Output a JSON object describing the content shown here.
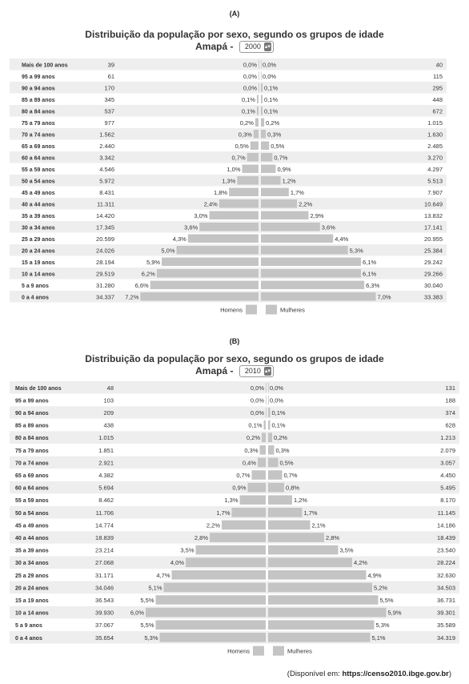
{
  "panels": [
    {
      "label": "(A)",
      "title": "Distribuição da população por sexo, segundo os grupos de idade",
      "subtitle": "Amapá -",
      "year": "2000",
      "legend": [
        "Homens",
        "Mulheres"
      ]
    },
    {
      "label": "(B)",
      "title": "Distribuição da população por sexo, segundo os grupos de idade",
      "subtitle": "Amapá -",
      "year": "2010",
      "legend": [
        "Homens",
        "Mulheres"
      ]
    }
  ],
  "source_prefix": "(Disponível em: ",
  "source_url": "https://censo2010.ibge.gov.br",
  "source_suffix": ")",
  "colors": {
    "bar": "#c4c4c4",
    "row_alt": "#eeeeee",
    "row": "#ffffff"
  },
  "chart_data": [
    {
      "type": "bar",
      "orientation": "horizontal-population-pyramid",
      "categories": [
        "Mais de 100 anos",
        "95 a 99 anos",
        "90 a 94 anos",
        "85 a 89 anos",
        "80 a 84 anos",
        "75 a 79 anos",
        "70 a 74 anos",
        "65 a 69 anos",
        "60 a 64 anos",
        "55 a 59 anos",
        "50 a 54 anos",
        "45 a 49 anos",
        "40 a 44 anos",
        "35 a 39 anos",
        "30 a 34 anos",
        "25 a 29 anos",
        "20 a 24 anos",
        "15 a 19 anos",
        "10 a 14 anos",
        "5 a 9 anos",
        "0 a 4 anos"
      ],
      "series": [
        {
          "name": "Homens",
          "counts": [
            "39",
            "61",
            "170",
            "345",
            "537",
            "977",
            "1.562",
            "2.440",
            "3.342",
            "4.546",
            "5.972",
            "8.431",
            "11.311",
            "14.420",
            "17.345",
            "20.599",
            "24.026",
            "28.194",
            "29.519",
            "31.280",
            "34.337"
          ],
          "percent_labels": [
            "0,0%",
            "0,0%",
            "0,0%",
            "0,1%",
            "0,1%",
            "0,2%",
            "0,3%",
            "0,5%",
            "0,7%",
            "1,0%",
            "1,3%",
            "1,8%",
            "2,4%",
            "3,0%",
            "3,6%",
            "4,3%",
            "5,0%",
            "5,9%",
            "6,2%",
            "6,6%",
            "7,2%"
          ],
          "values": [
            0.0,
            0.0,
            0.0,
            0.1,
            0.1,
            0.2,
            0.3,
            0.5,
            0.7,
            1.0,
            1.3,
            1.8,
            2.4,
            3.0,
            3.6,
            4.3,
            5.0,
            5.9,
            6.2,
            6.6,
            7.2
          ]
        },
        {
          "name": "Mulheres",
          "counts": [
            "40",
            "115",
            "295",
            "448",
            "672",
            "1.015",
            "1.630",
            "2.485",
            "3.270",
            "4.297",
            "5.513",
            "7.907",
            "10.649",
            "13.832",
            "17.141",
            "20.955",
            "25.384",
            "29.242",
            "29.266",
            "30.040",
            "33.383"
          ],
          "percent_labels": [
            "0,0%",
            "0,0%",
            "0,1%",
            "0,1%",
            "0,1%",
            "0,2%",
            "0,3%",
            "0,5%",
            "0,7%",
            "0,9%",
            "1,2%",
            "1,7%",
            "2,2%",
            "2,9%",
            "3,6%",
            "4,4%",
            "5,3%",
            "6,1%",
            "6,1%",
            "6,3%",
            "7,0%"
          ],
          "values": [
            0.0,
            0.0,
            0.1,
            0.1,
            0.1,
            0.2,
            0.3,
            0.5,
            0.7,
            0.9,
            1.2,
            1.7,
            2.2,
            2.9,
            3.6,
            4.4,
            5.3,
            6.1,
            6.1,
            6.3,
            7.0
          ]
        }
      ]
    },
    {
      "type": "bar",
      "orientation": "horizontal-population-pyramid",
      "categories": [
        "Mais de 100 anos",
        "95 a 99 anos",
        "90 a 94 anos",
        "85 a 89 anos",
        "80 a 84 anos",
        "75 a 79 anos",
        "70 a 74 anos",
        "65 a 69 anos",
        "60 a 64 anos",
        "55 a 59 anos",
        "50 a 54 anos",
        "45 a 49 anos",
        "40 a 44 anos",
        "35 a 39 anos",
        "30 a 34 anos",
        "25 a 29 anos",
        "20 a 24 anos",
        "15 a 19 anos",
        "10 a 14 anos",
        "5 a 9 anos",
        "0 a 4 anos"
      ],
      "series": [
        {
          "name": "Homens",
          "counts": [
            "48",
            "103",
            "209",
            "438",
            "1.015",
            "1.851",
            "2.921",
            "4.382",
            "5.694",
            "8.462",
            "11.706",
            "14.774",
            "18.839",
            "23.214",
            "27.068",
            "31.171",
            "34.046",
            "36.543",
            "39.930",
            "37.067",
            "35.654"
          ],
          "percent_labels": [
            "0,0%",
            "0,0%",
            "0,0%",
            "0,1%",
            "0,2%",
            "0,3%",
            "0,4%",
            "0,7%",
            "0,9%",
            "1,3%",
            "1,7%",
            "2,2%",
            "2,8%",
            "3,5%",
            "4,0%",
            "4,7%",
            "5,1%",
            "5,5%",
            "6,0%",
            "5,5%",
            "5,3%"
          ],
          "values": [
            0.0,
            0.0,
            0.0,
            0.1,
            0.2,
            0.3,
            0.4,
            0.7,
            0.9,
            1.3,
            1.7,
            2.2,
            2.8,
            3.5,
            4.0,
            4.7,
            5.1,
            5.5,
            6.0,
            5.5,
            5.3
          ]
        },
        {
          "name": "Mulheres",
          "counts": [
            "131",
            "188",
            "374",
            "628",
            "1.213",
            "2.079",
            "3.057",
            "4.450",
            "5.495",
            "8.170",
            "11.145",
            "14.186",
            "18.439",
            "23.540",
            "28.224",
            "32.630",
            "34.503",
            "36.731",
            "39.301",
            "35.589",
            "34.319"
          ],
          "percent_labels": [
            "0,0%",
            "0,0%",
            "0,1%",
            "0,1%",
            "0,2%",
            "0,3%",
            "0,5%",
            "0,7%",
            "0,8%",
            "1,2%",
            "1,7%",
            "2,1%",
            "2,8%",
            "3,5%",
            "4,2%",
            "4,9%",
            "5,2%",
            "5,5%",
            "5,9%",
            "5,3%",
            "5,1%"
          ],
          "values": [
            0.0,
            0.0,
            0.1,
            0.1,
            0.2,
            0.3,
            0.5,
            0.7,
            0.8,
            1.2,
            1.7,
            2.1,
            2.8,
            3.5,
            4.2,
            4.9,
            5.2,
            5.5,
            5.9,
            5.3,
            5.1
          ]
        }
      ]
    }
  ]
}
